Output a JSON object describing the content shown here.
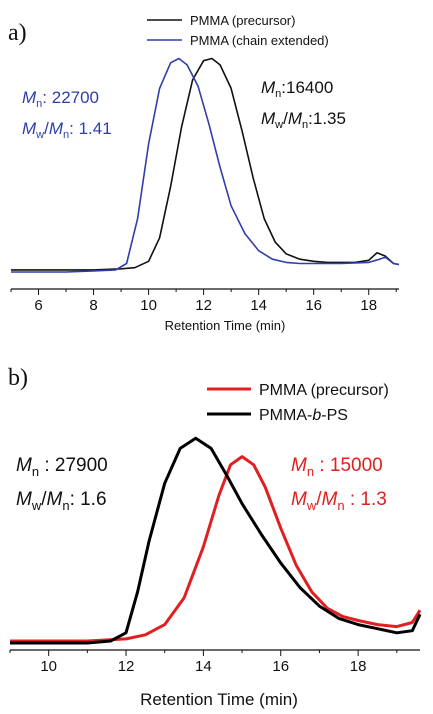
{
  "chart_data": [
    {
      "panel_label": "a)",
      "type": "line",
      "xlabel": "Retention Time (min)",
      "ylabel": "",
      "xlim": [
        5,
        19.1
      ],
      "ylim": [
        0,
        1.04
      ],
      "x_ticks": [
        6,
        8,
        10,
        12,
        14,
        16,
        18
      ],
      "grid": false,
      "legend_position": "top-right",
      "legend_entries": [
        "PMMA (precursor)",
        "PMMA (chain extended)"
      ],
      "series": [
        {
          "name": "PMMA (precursor)",
          "color": "#111111",
          "x": [
            5.0,
            6.0,
            7.0,
            8.0,
            9.0,
            9.5,
            10.0,
            10.4,
            10.8,
            11.2,
            11.6,
            12.0,
            12.3,
            12.6,
            13.0,
            13.4,
            13.8,
            14.2,
            14.6,
            15.0,
            15.5,
            16.0,
            16.5,
            17.0,
            17.5,
            18.0,
            18.3,
            18.6,
            18.9,
            19.1
          ],
          "y": [
            0.01,
            0.01,
            0.01,
            0.01,
            0.015,
            0.02,
            0.05,
            0.16,
            0.4,
            0.68,
            0.9,
            0.99,
            1.0,
            0.97,
            0.86,
            0.66,
            0.44,
            0.25,
            0.14,
            0.085,
            0.06,
            0.05,
            0.045,
            0.045,
            0.045,
            0.055,
            0.09,
            0.075,
            0.04,
            0.035
          ]
        },
        {
          "name": "PMMA (chain extended)",
          "color": "#2f3fa8",
          "x": [
            5.0,
            6.0,
            7.0,
            8.0,
            8.8,
            9.2,
            9.6,
            10.0,
            10.4,
            10.8,
            11.1,
            11.4,
            11.8,
            12.2,
            12.6,
            13.0,
            13.5,
            14.0,
            14.5,
            15.0,
            15.5,
            16.0,
            17.0,
            18.0,
            18.4,
            18.6,
            18.9,
            19.1
          ],
          "y": [
            0.0,
            0.0,
            0.0,
            0.005,
            0.01,
            0.04,
            0.25,
            0.6,
            0.86,
            0.98,
            1.0,
            0.97,
            0.87,
            0.69,
            0.49,
            0.31,
            0.18,
            0.1,
            0.06,
            0.045,
            0.04,
            0.04,
            0.04,
            0.045,
            0.06,
            0.07,
            0.04,
            0.035
          ]
        }
      ],
      "annotations": [
        {
          "series": "PMMA (chain extended)",
          "mn_label": "M",
          "mn_sub": "n",
          "mn_value": ": 22700",
          "pdi_value": ": 1.41"
        },
        {
          "series": "PMMA (precursor)",
          "mn_label": "M",
          "mn_sub": "n",
          "mn_value": ":16400",
          "pdi_value": ":1.35"
        }
      ]
    },
    {
      "panel_label": "b)",
      "type": "line",
      "xlabel": "Retention Time (min)",
      "ylabel": "",
      "xlim": [
        9,
        19.6
      ],
      "ylim": [
        0,
        1.04
      ],
      "x_ticks": [
        10,
        12,
        14,
        16,
        18
      ],
      "grid": false,
      "legend_position": "top-right",
      "legend_entries": [
        "PMMA (precursor)",
        "PMMA-b-PS"
      ],
      "series": [
        {
          "name": "PMMA (precursor)",
          "color": "#e02020",
          "x": [
            9.0,
            10.0,
            11.0,
            12.0,
            12.5,
            13.0,
            13.5,
            14.0,
            14.4,
            14.7,
            15.0,
            15.3,
            15.6,
            16.0,
            16.4,
            16.8,
            17.2,
            17.6,
            18.0,
            18.5,
            19.0,
            19.4,
            19.6
          ],
          "y": [
            0.01,
            0.01,
            0.01,
            0.02,
            0.04,
            0.09,
            0.22,
            0.47,
            0.72,
            0.87,
            0.91,
            0.87,
            0.76,
            0.56,
            0.38,
            0.25,
            0.17,
            0.13,
            0.11,
            0.09,
            0.08,
            0.1,
            0.16
          ]
        },
        {
          "name": "PMMA-b-PS",
          "color": "#000000",
          "x": [
            9.0,
            10.0,
            11.0,
            11.6,
            12.0,
            12.3,
            12.6,
            13.0,
            13.4,
            13.8,
            14.2,
            14.6,
            15.0,
            15.5,
            16.0,
            16.5,
            17.0,
            17.5,
            18.0,
            18.5,
            19.0,
            19.4,
            19.6
          ],
          "y": [
            0.0,
            0.0,
            0.0,
            0.01,
            0.05,
            0.25,
            0.5,
            0.78,
            0.95,
            1.0,
            0.95,
            0.82,
            0.68,
            0.53,
            0.39,
            0.27,
            0.18,
            0.12,
            0.09,
            0.07,
            0.05,
            0.06,
            0.14
          ]
        }
      ],
      "annotations": [
        {
          "series": "PMMA-b-PS",
          "mn_label": "M",
          "mn_sub": "n",
          "mn_value": " : 27900",
          "pdi_value": ": 1.6"
        },
        {
          "series": "PMMA (precursor)",
          "mn_label": "M",
          "mn_sub": "n",
          "mn_value": " : 15000",
          "pdi_value": " : 1.3"
        }
      ]
    }
  ]
}
